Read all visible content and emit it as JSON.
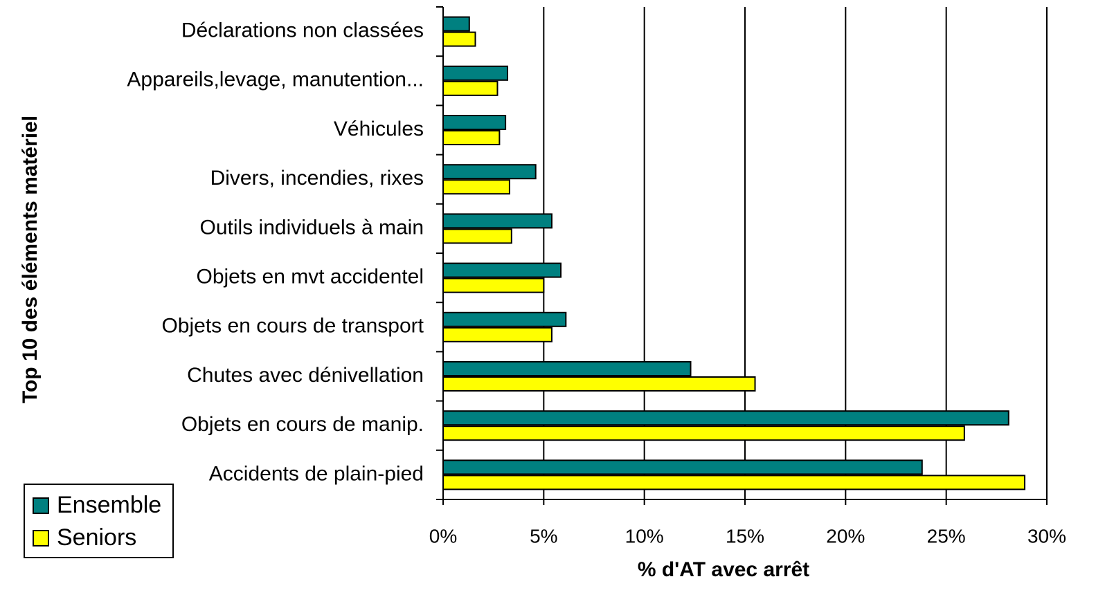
{
  "chart_data": {
    "type": "bar",
    "orientation": "horizontal",
    "x_label": "% d'AT avec arrêt",
    "y_label": "Top 10 des éléments matériel",
    "categories": [
      "Déclarations non classées",
      "Appareils,levage, manutention...",
      "Véhicules",
      "Divers, incendies, rixes",
      "Outils individuels à main",
      "Objets en mvt accidentel",
      "Objets en cours de transport",
      "Chutes avec dénivellation",
      "Objets en cours de manip.",
      "Accidents de plain-pied"
    ],
    "series": [
      {
        "name": "Ensemble",
        "color": "#008080",
        "values": [
          1.3,
          3.2,
          3.1,
          4.6,
          5.4,
          5.85,
          6.1,
          12.3,
          28.1,
          23.8
        ]
      },
      {
        "name": "Seniors",
        "color": "#ffff00",
        "values": [
          1.6,
          2.7,
          2.8,
          3.3,
          3.4,
          5.0,
          5.4,
          15.5,
          25.9,
          28.9
        ]
      }
    ],
    "xlim": [
      0,
      30
    ],
    "xticks": [
      {
        "value": 0,
        "label": "0%"
      },
      {
        "value": 5,
        "label": "5%"
      },
      {
        "value": 10,
        "label": "10%"
      },
      {
        "value": 15,
        "label": "15%"
      },
      {
        "value": 20,
        "label": "20%"
      },
      {
        "value": 25,
        "label": "25%"
      },
      {
        "value": 30,
        "label": "30%"
      }
    ],
    "grid": true,
    "legend": "bottom-left"
  }
}
